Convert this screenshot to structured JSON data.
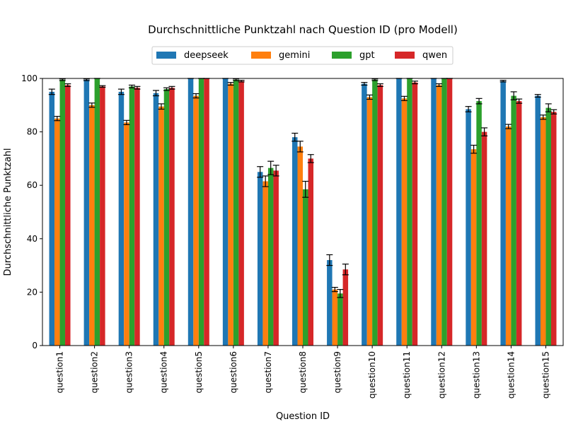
{
  "chart_data": {
    "type": "bar",
    "title": "Durchschnittliche Punktzahl nach Question ID (pro Modell)",
    "xlabel": "Question ID",
    "ylabel": "Durchschnittliche Punktzahl",
    "ylim": [
      0,
      100
    ],
    "yticks": [
      "0",
      "20",
      "40",
      "60",
      "80",
      "100"
    ],
    "grid": false,
    "legend_placement": "top-center",
    "categories": [
      "question1",
      "question2",
      "question3",
      "question4",
      "question5",
      "question6",
      "question7",
      "question8",
      "question9",
      "question10",
      "question11",
      "question12",
      "question13",
      "question14",
      "question15"
    ],
    "series": [
      {
        "name": "deepseek",
        "color": "#1f77b4",
        "values": [
          95.0,
          99.5,
          95.0,
          94.5,
          100.0,
          100.0,
          65.0,
          78.0,
          32.0,
          98.0,
          100.0,
          100.0,
          88.5,
          99.0,
          93.5
        ],
        "errors": [
          1.0,
          0.3,
          1.0,
          1.0,
          0.0,
          0.0,
          2.0,
          1.5,
          2.0,
          0.5,
          0.0,
          0.0,
          1.0,
          0.3,
          0.5
        ]
      },
      {
        "name": "gemini",
        "color": "#ff7f0e",
        "values": [
          85.0,
          90.0,
          83.5,
          89.5,
          93.5,
          98.0,
          61.5,
          74.5,
          21.0,
          93.0,
          92.5,
          97.5,
          73.5,
          82.0,
          85.5
        ],
        "errors": [
          0.8,
          0.8,
          0.8,
          1.0,
          0.8,
          0.5,
          2.0,
          2.0,
          0.8,
          0.8,
          0.8,
          0.5,
          1.5,
          0.8,
          0.8
        ]
      },
      {
        "name": "gpt",
        "color": "#2ca02c",
        "values": [
          99.5,
          100.0,
          97.0,
          96.0,
          100.0,
          99.5,
          66.5,
          58.5,
          19.5,
          99.5,
          100.0,
          100.0,
          91.5,
          93.5,
          89.0
        ],
        "errors": [
          0.3,
          0.0,
          0.5,
          0.5,
          0.0,
          0.3,
          2.5,
          3.0,
          1.5,
          0.3,
          0.0,
          0.0,
          1.0,
          1.5,
          1.5
        ]
      },
      {
        "name": "qwen",
        "color": "#d62728",
        "values": [
          97.5,
          97.0,
          96.5,
          96.5,
          100.0,
          99.0,
          65.5,
          70.0,
          28.5,
          97.5,
          98.5,
          100.0,
          80.0,
          91.5,
          87.5
        ],
        "errors": [
          0.5,
          0.3,
          0.5,
          0.5,
          0.0,
          0.3,
          2.0,
          1.5,
          2.0,
          0.5,
          0.5,
          0.0,
          1.5,
          0.8,
          0.8
        ]
      }
    ]
  }
}
